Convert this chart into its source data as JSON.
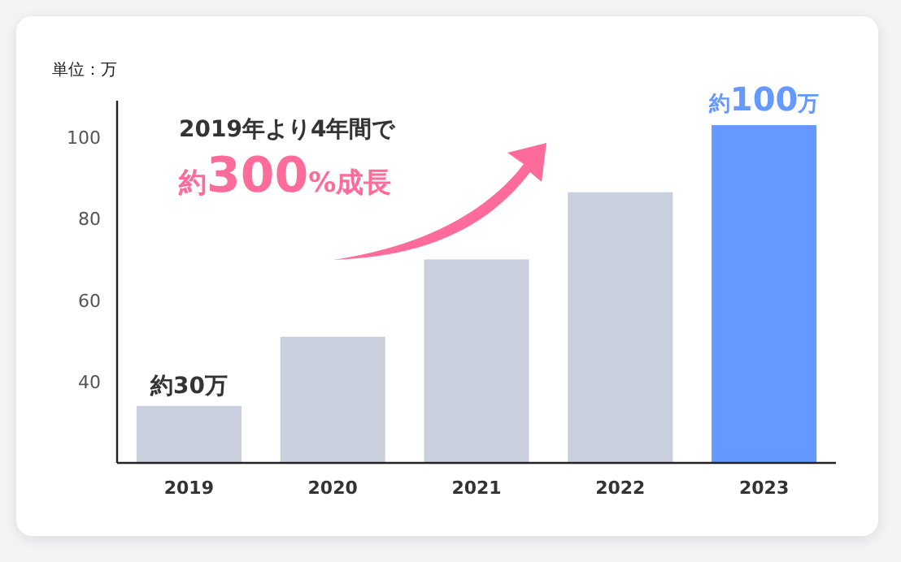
{
  "chart_data": {
    "type": "bar",
    "ylabel": "単位：万",
    "categories": [
      "2019",
      "2020",
      "2021",
      "2022",
      "2023"
    ],
    "values": [
      34,
      51,
      70,
      86.5,
      103
    ],
    "colors": [
      "#c9cfdc",
      "#c9cfdc",
      "#c9cfdc",
      "#c9cfdc",
      "#6699ff"
    ],
    "value_labels": [
      "約30万",
      null,
      null,
      null,
      "約100万"
    ],
    "ylim": [
      20,
      109
    ],
    "yticks": [
      40,
      60,
      80,
      100
    ],
    "annotations": [
      "2019年より4年間で",
      "約300%成長"
    ]
  }
}
